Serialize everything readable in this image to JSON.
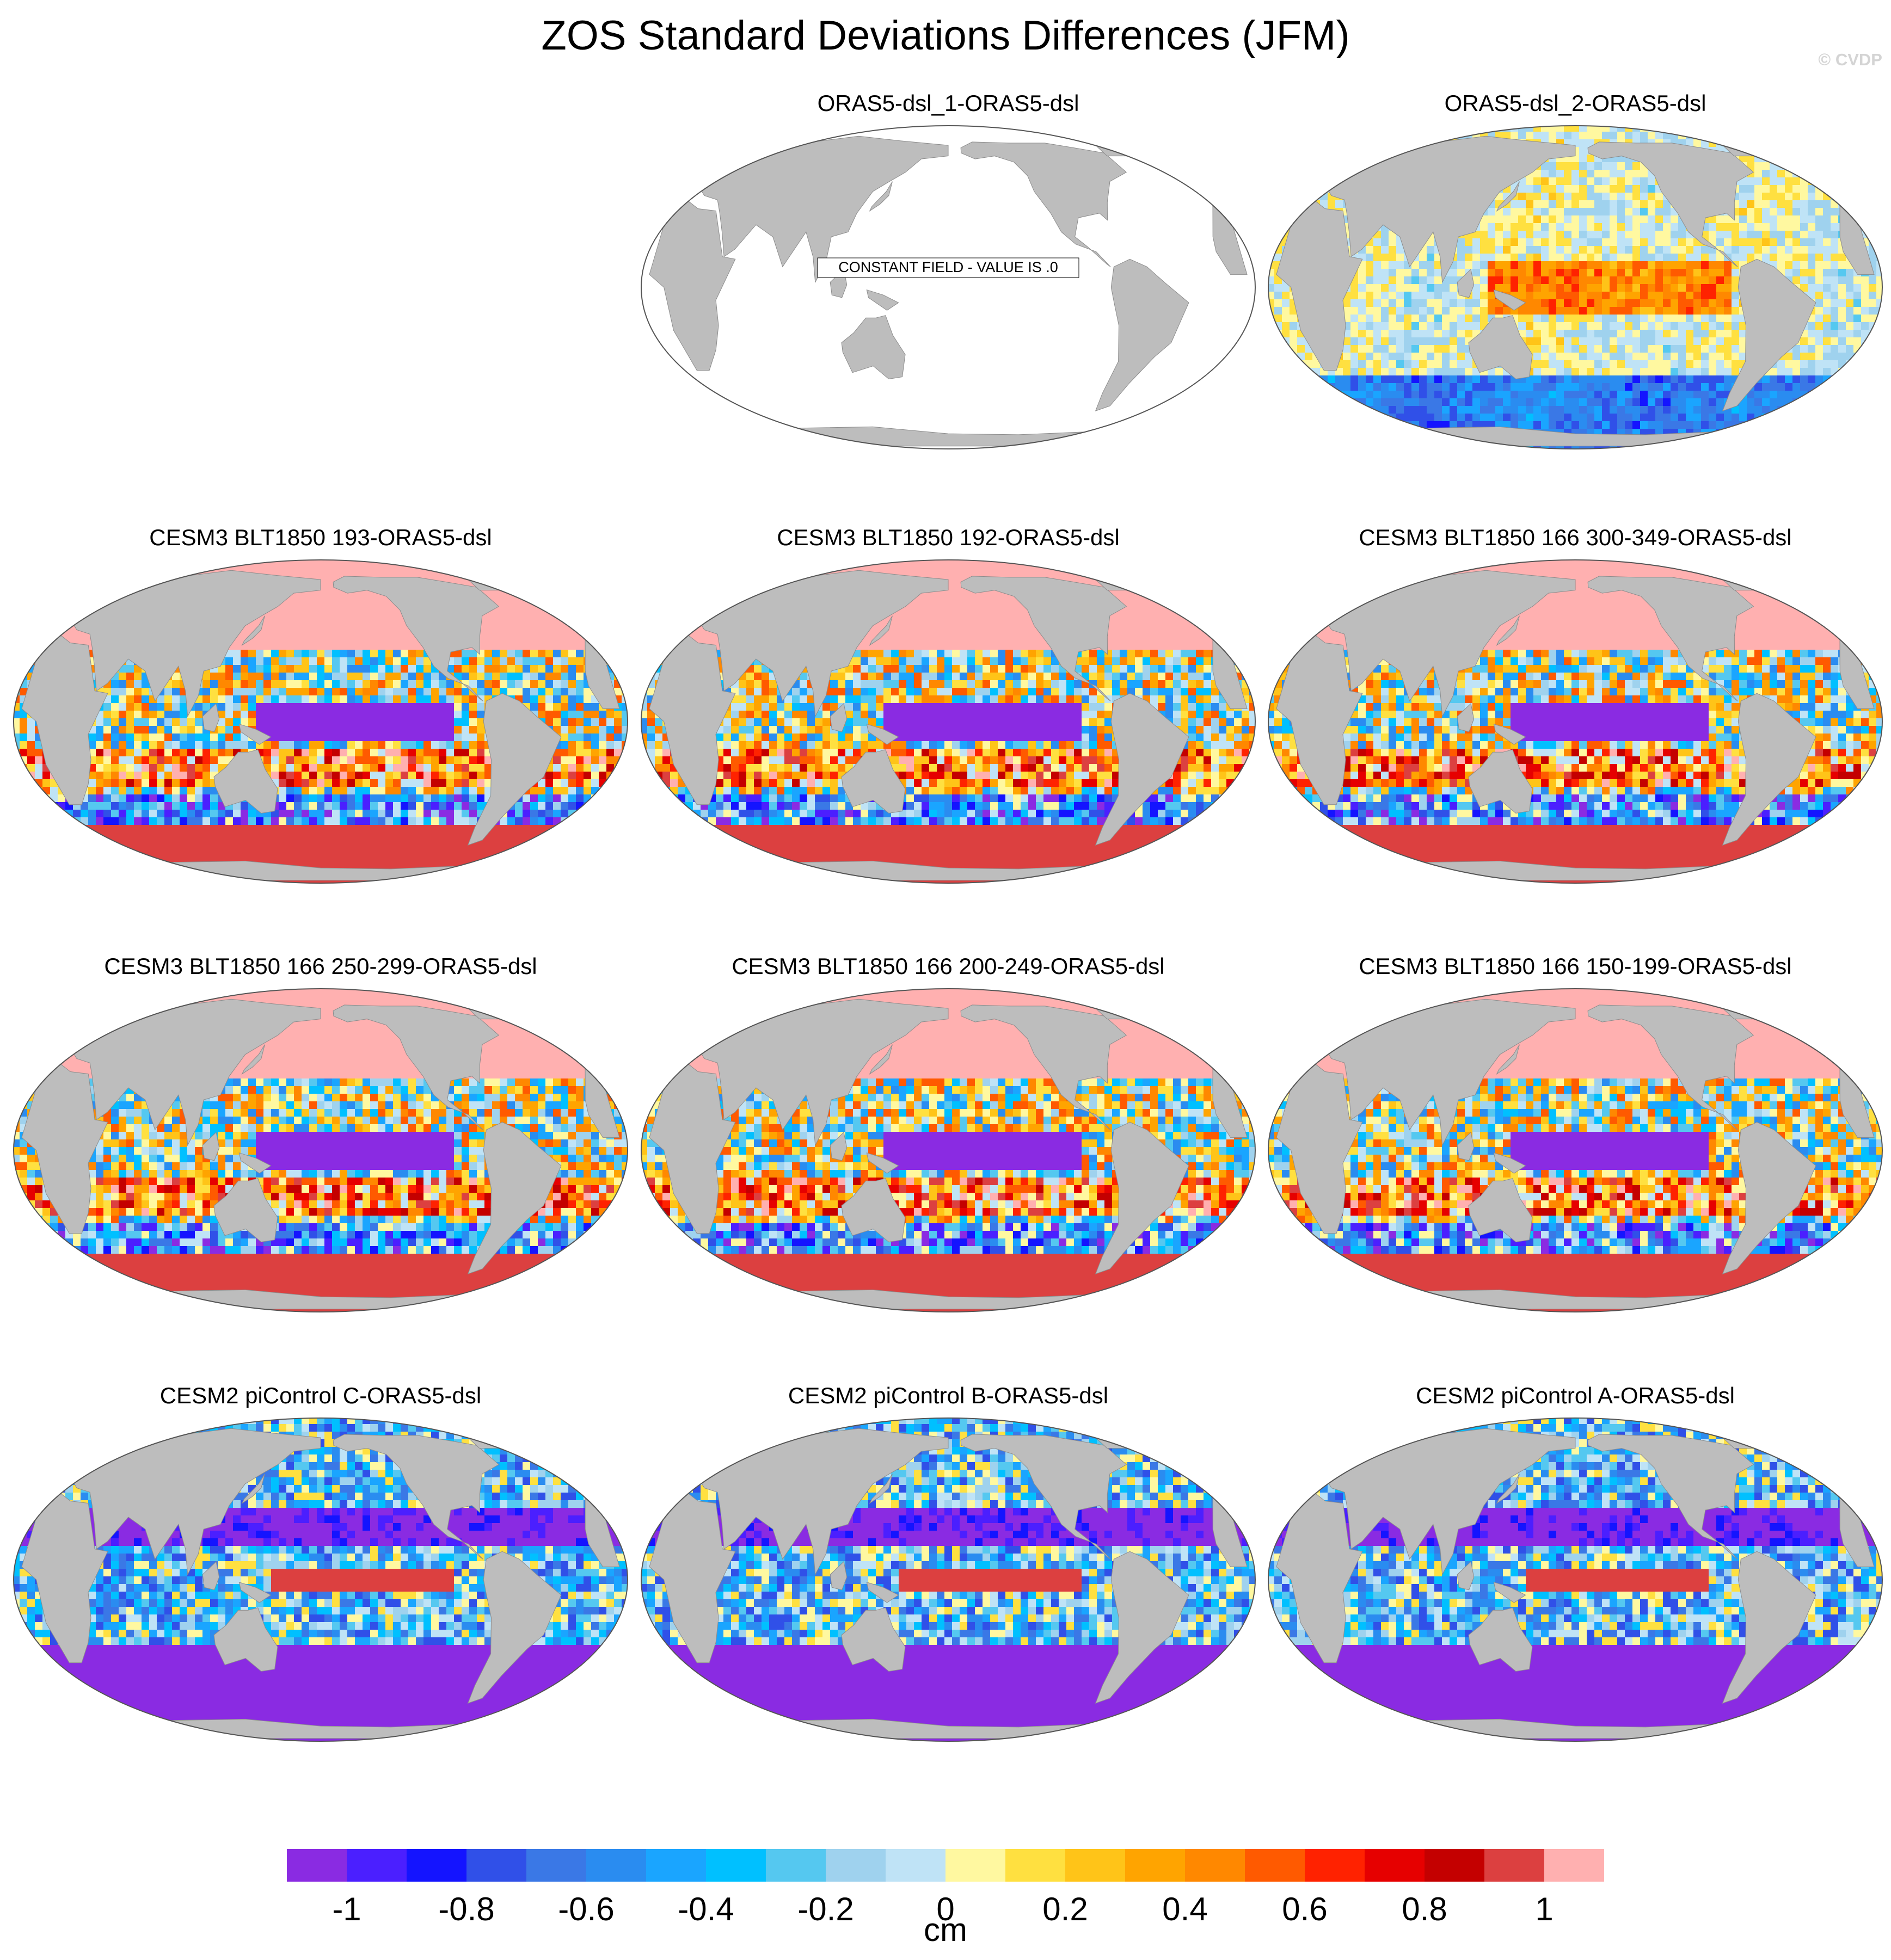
{
  "figure": {
    "title": "ZOS Standard Deviations Differences (JFM)",
    "credit": "© CVDP"
  },
  "chart_data": {
    "type": "heatmap",
    "projection": "Robinson, global, centered on the Pacific",
    "variable": "ZOS standard deviation difference",
    "season": "JFM",
    "units": "cm",
    "colorbar": {
      "levels": [
        -1,
        -0.9,
        -0.8,
        -0.7,
        -0.6,
        -0.5,
        -0.4,
        -0.3,
        -0.2,
        -0.1,
        0,
        0.1,
        0.2,
        0.3,
        0.4,
        0.5,
        0.6,
        0.7,
        0.8,
        0.9,
        1
      ],
      "tick_labels": [
        "-1",
        "-0.8",
        "-0.6",
        "-0.4",
        "-0.2",
        "0",
        "0.2",
        "0.4",
        "0.6",
        "0.8",
        "1"
      ],
      "colors": [
        "#8a2be2",
        "#4b1fff",
        "#1414ff",
        "#3050e8",
        "#3a78e6",
        "#2a8cf0",
        "#1aa5ff",
        "#00c0ff",
        "#55c8f0",
        "#9fd2ee",
        "#bfe3f6",
        "#fff8a0",
        "#ffe040",
        "#ffc418",
        "#ffa400",
        "#ff8800",
        "#ff5a00",
        "#ff2200",
        "#e60000",
        "#c40000",
        "#dc4040",
        "#ffb0b0"
      ],
      "label": "cm"
    },
    "panels": [
      {
        "title": "ORAS5-dsl_1-ORAS5-dsl",
        "note": "CONSTANT FIELD - VALUE IS .0",
        "pattern": "constant"
      },
      {
        "title": "ORAS5-dsl_2-ORAS5-dsl",
        "pattern": "near-zero"
      },
      {
        "title": "CESM3 BLT1850 193-ORAS5-dsl",
        "pattern": "cesm3"
      },
      {
        "title": "CESM3 BLT1850 192-ORAS5-dsl",
        "pattern": "cesm3"
      },
      {
        "title": "CESM3 BLT1850 166 300-349-ORAS5-dsl",
        "pattern": "cesm3"
      },
      {
        "title": "CESM3 BLT1850 166 250-299-ORAS5-dsl",
        "pattern": "cesm3"
      },
      {
        "title": "CESM3 BLT1850 166 200-249-ORAS5-dsl",
        "pattern": "cesm3"
      },
      {
        "title": "CESM3 BLT1850 166 150-199-ORAS5-dsl",
        "pattern": "cesm3"
      },
      {
        "title": "CESM2 piControl C-ORAS5-dsl",
        "pattern": "cesm2"
      },
      {
        "title": "CESM2 piControl B-ORAS5-dsl",
        "pattern": "cesm2"
      },
      {
        "title": "CESM2 piControl A-ORAS5-dsl",
        "pattern": "cesm2"
      }
    ]
  }
}
